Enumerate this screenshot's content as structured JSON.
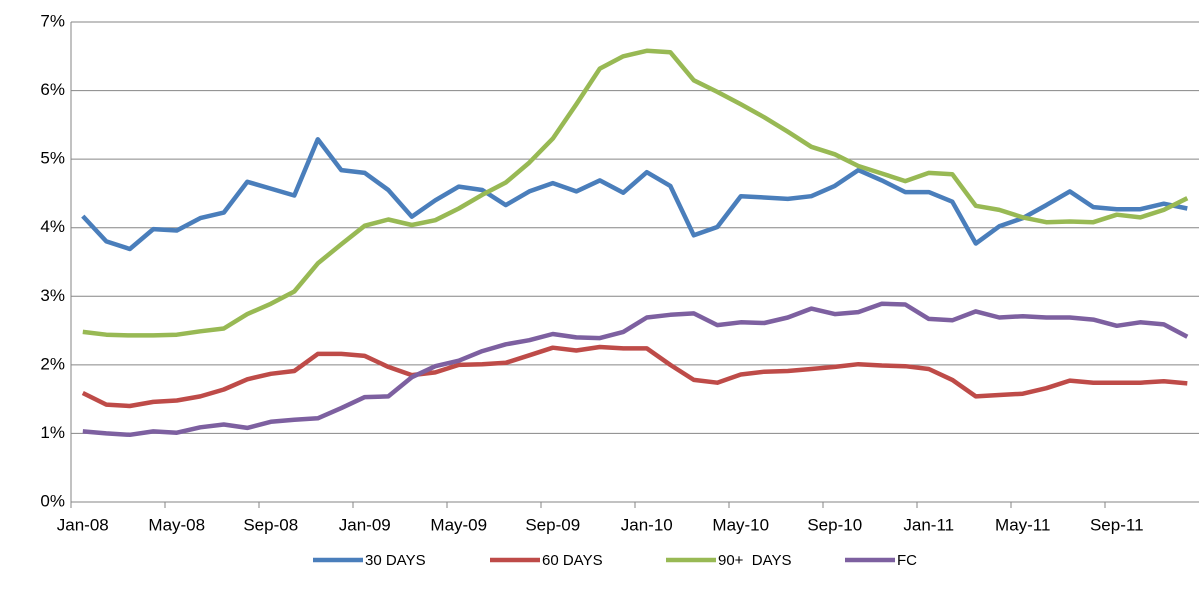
{
  "chart_data": {
    "type": "line",
    "categories": [
      "Jan-08",
      null,
      null,
      null,
      "May-08",
      null,
      null,
      null,
      "Sep-08",
      null,
      null,
      null,
      "Jan-09",
      null,
      null,
      null,
      "May-09",
      null,
      null,
      null,
      "Sep-09",
      null,
      null,
      null,
      "Jan-10",
      null,
      null,
      null,
      "May-10",
      null,
      null,
      null,
      "Sep-10",
      null,
      null,
      null,
      "Jan-11",
      null,
      null,
      null,
      "May-11",
      null,
      null,
      null,
      "Sep-11",
      null,
      null,
      null
    ],
    "series": [
      {
        "name": "30 DAYS",
        "color": "#4a7ebb",
        "values": [
          4.17,
          3.8,
          3.69,
          3.98,
          3.96,
          4.14,
          4.22,
          4.67,
          4.57,
          4.47,
          5.29,
          4.84,
          4.8,
          4.55,
          4.16,
          4.4,
          4.6,
          4.55,
          4.33,
          4.53,
          4.65,
          4.53,
          4.69,
          4.51,
          4.81,
          4.61,
          3.89,
          4.01,
          4.46,
          4.44,
          4.42,
          4.46,
          4.61,
          4.84,
          4.69,
          4.52,
          4.52,
          4.38,
          3.77,
          4.02,
          4.14,
          4.33,
          4.53,
          4.3,
          4.27,
          4.27,
          4.35,
          4.28
        ]
      },
      {
        "name": "60 DAYS",
        "color": "#be4b48",
        "values": [
          1.59,
          1.42,
          1.4,
          1.46,
          1.48,
          1.54,
          1.64,
          1.79,
          1.87,
          1.91,
          2.16,
          2.16,
          2.13,
          1.97,
          1.85,
          1.89,
          2.0,
          2.01,
          2.03,
          2.14,
          2.25,
          2.21,
          2.26,
          2.24,
          2.24,
          2.0,
          1.78,
          1.74,
          1.86,
          1.9,
          1.91,
          1.94,
          1.97,
          2.01,
          1.99,
          1.98,
          1.94,
          1.78,
          1.54,
          1.56,
          1.58,
          1.66,
          1.77,
          1.74,
          1.74,
          1.74,
          1.76,
          1.73
        ]
      },
      {
        "name": "90+  DAYS",
        "color": "#98b954",
        "values": [
          2.48,
          2.44,
          2.43,
          2.43,
          2.44,
          2.49,
          2.53,
          2.74,
          2.89,
          3.07,
          3.48,
          3.76,
          4.03,
          4.12,
          4.04,
          4.11,
          4.28,
          4.48,
          4.66,
          4.95,
          5.3,
          5.8,
          6.32,
          6.5,
          6.58,
          6.56,
          6.15,
          5.98,
          5.8,
          5.61,
          5.4,
          5.18,
          5.07,
          4.9,
          4.79,
          4.68,
          4.8,
          4.78,
          4.32,
          4.26,
          4.15,
          4.08,
          4.09,
          4.08,
          4.19,
          4.15,
          4.26,
          4.43
        ]
      },
      {
        "name": "FC",
        "color": "#7d60a0",
        "values": [
          1.03,
          1.0,
          0.98,
          1.03,
          1.01,
          1.09,
          1.13,
          1.08,
          1.17,
          1.2,
          1.22,
          1.37,
          1.53,
          1.54,
          1.82,
          1.98,
          2.06,
          2.2,
          2.3,
          2.36,
          2.45,
          2.4,
          2.39,
          2.48,
          2.69,
          2.73,
          2.75,
          2.58,
          2.62,
          2.61,
          2.69,
          2.82,
          2.74,
          2.77,
          2.89,
          2.88,
          2.67,
          2.65,
          2.78,
          2.69,
          2.71,
          2.69,
          2.69,
          2.66,
          2.57,
          2.62,
          2.59,
          2.41
        ]
      }
    ],
    "ylim": [
      0,
      7
    ],
    "yticks": [
      {
        "value": 0,
        "label": "0%"
      },
      {
        "value": 1,
        "label": "1%"
      },
      {
        "value": 2,
        "label": "2%"
      },
      {
        "value": 3,
        "label": "3%"
      },
      {
        "value": 4,
        "label": "4%"
      },
      {
        "value": 5,
        "label": "5%"
      },
      {
        "value": 6,
        "label": "6%"
      },
      {
        "value": 7,
        "label": "7%"
      }
    ],
    "grid": true,
    "legend": "bottom"
  }
}
